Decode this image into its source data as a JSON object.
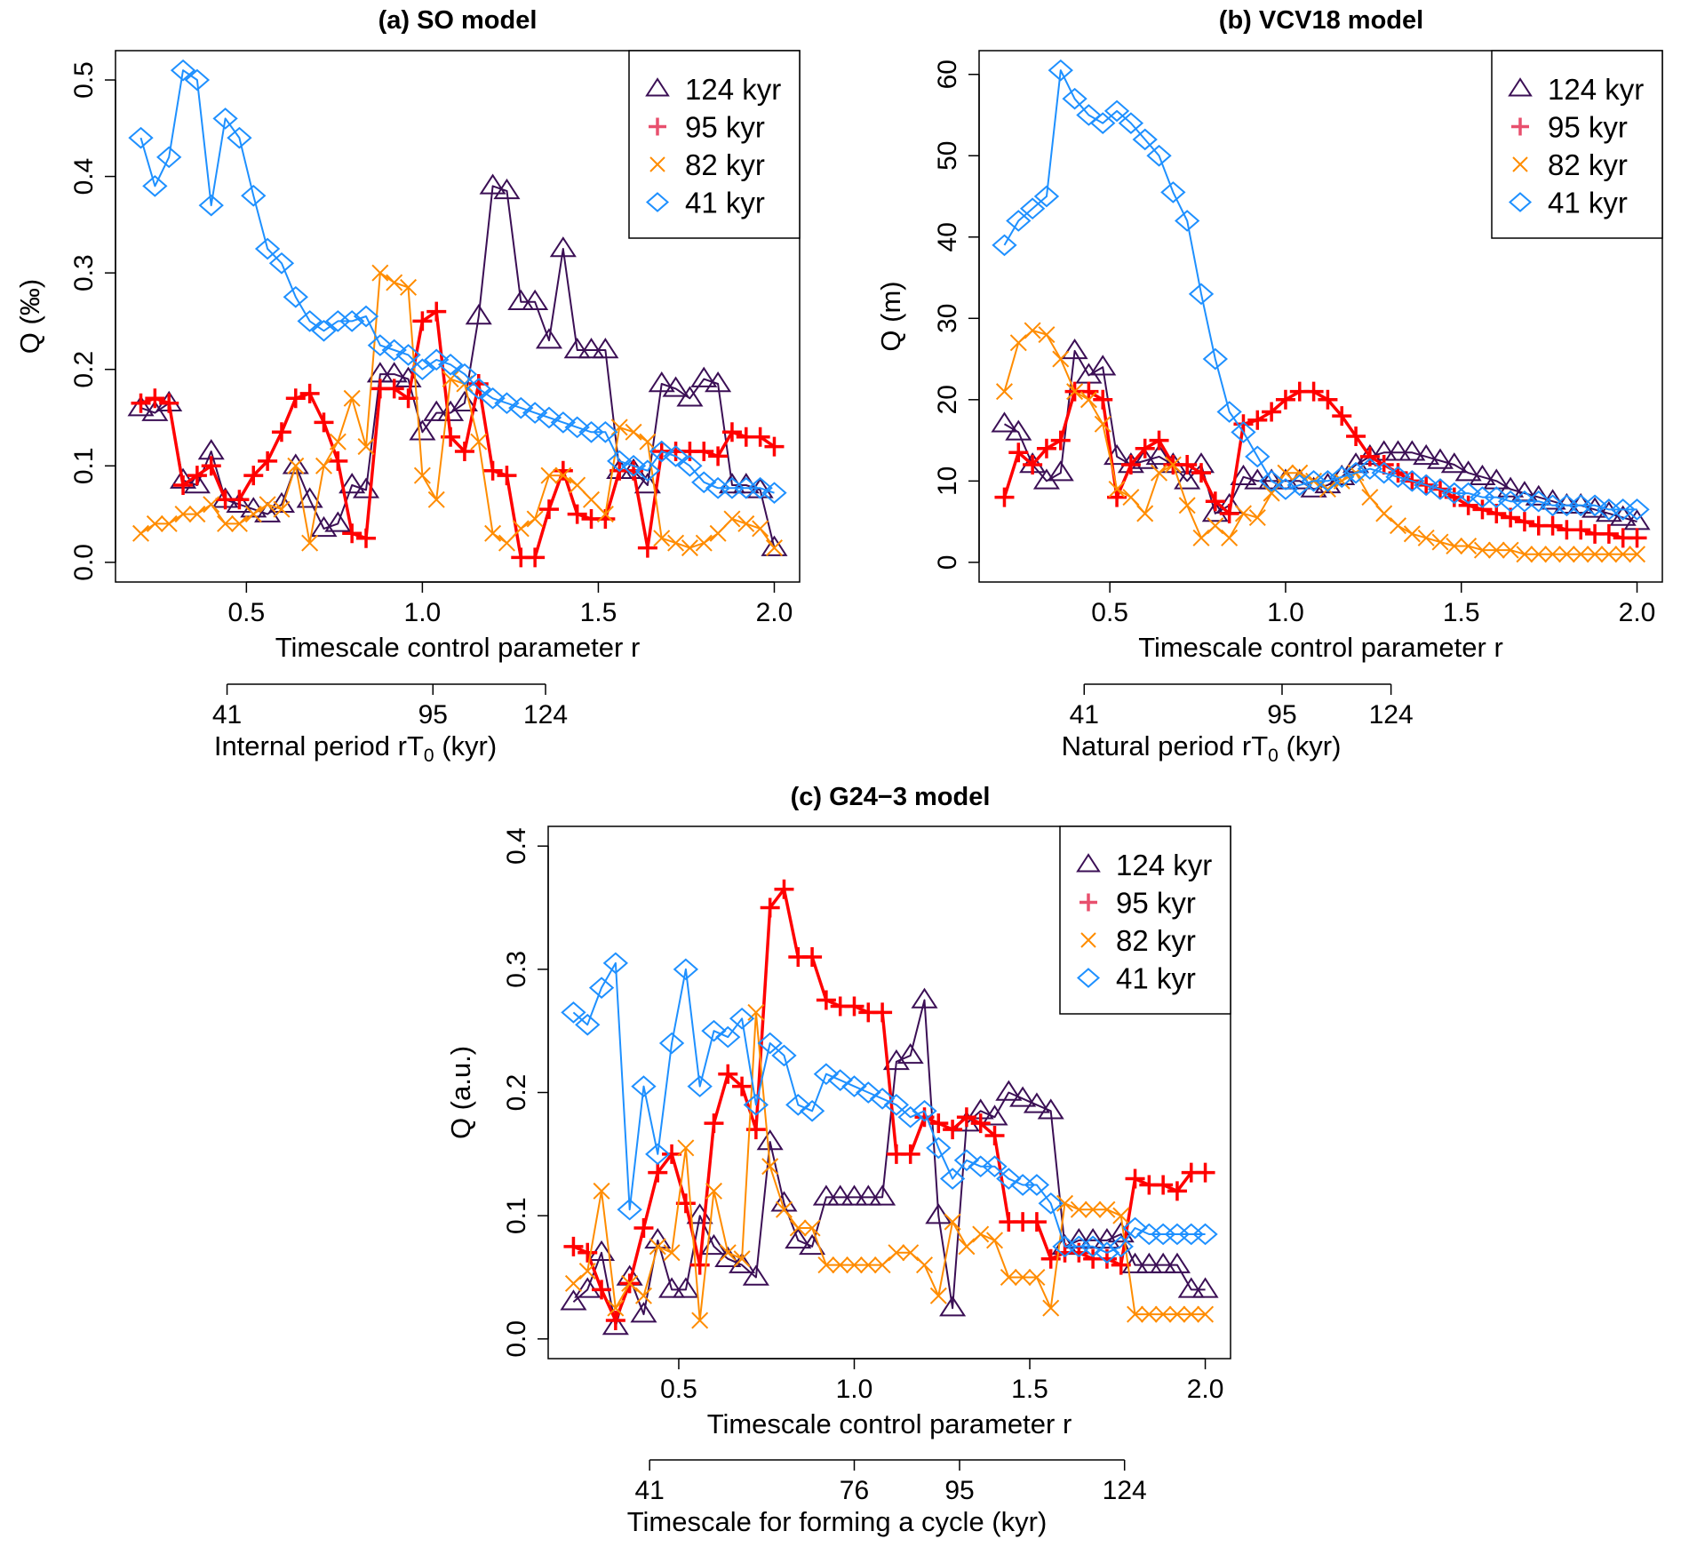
{
  "chart_data": [
    {
      "type": "line",
      "title": "(a) SO model",
      "xlabel": "Timescale control parameter r",
      "ylabel": "Q (‰)",
      "secondary_axis": {
        "label_main": "Internal period rT",
        "label_sub": "0",
        "label_tail": " (kyr)",
        "ticks": [
          "41",
          "95",
          "124"
        ]
      },
      "xlim": [
        0.2,
        2.0
      ],
      "ylim": [
        0,
        0.51
      ],
      "xticks": [
        "0.5",
        "1.0",
        "1.5",
        "2.0"
      ],
      "yticks": [
        "0.0",
        "0.1",
        "0.2",
        "0.3",
        "0.4",
        "0.5"
      ],
      "grid": false,
      "legend": "top-right",
      "x": {
        "start": 0.2,
        "step": 0.04,
        "count": 46
      },
      "series": [
        {
          "name": "124 kyr",
          "marker": "triangle",
          "color": "#3b0f55",
          "values": [
            0.16,
            0.155,
            0.165,
            0.085,
            0.08,
            0.115,
            0.065,
            0.06,
            0.055,
            0.05,
            0.06,
            0.1,
            0.065,
            0.035,
            0.04,
            0.08,
            0.075,
            0.195,
            0.195,
            0.19,
            0.135,
            0.155,
            0.155,
            0.165,
            0.255,
            0.39,
            0.385,
            0.27,
            0.27,
            0.23,
            0.325,
            0.22,
            0.22,
            0.22,
            0.095,
            0.095,
            0.08,
            0.185,
            0.18,
            0.17,
            0.19,
            0.185,
            0.08,
            0.08,
            0.075,
            0.015
          ]
        },
        {
          "name": "95 kyr",
          "marker": "plus",
          "color": "#ff0000",
          "values": [
            0.165,
            0.17,
            0.165,
            0.08,
            0.09,
            0.1,
            0.065,
            0.065,
            0.09,
            0.105,
            0.135,
            0.17,
            0.175,
            0.145,
            0.105,
            0.03,
            0.025,
            0.18,
            0.18,
            0.17,
            0.25,
            0.26,
            0.13,
            0.115,
            0.185,
            0.095,
            0.09,
            0.005,
            0.005,
            0.055,
            0.095,
            0.05,
            0.045,
            0.045,
            0.095,
            0.095,
            0.015,
            0.115,
            0.115,
            0.115,
            0.115,
            0.11,
            0.135,
            0.13,
            0.13,
            0.12
          ]
        },
        {
          "name": "82 kyr",
          "marker": "cross",
          "color": "#ff8c00",
          "values": [
            0.03,
            0.04,
            0.04,
            0.05,
            0.05,
            0.06,
            0.04,
            0.04,
            0.05,
            0.06,
            0.055,
            0.1,
            0.02,
            0.1,
            0.125,
            0.17,
            0.12,
            0.3,
            0.29,
            0.285,
            0.09,
            0.065,
            0.19,
            0.185,
            0.125,
            0.03,
            0.02,
            0.035,
            0.045,
            0.09,
            0.09,
            0.08,
            0.065,
            0.05,
            0.14,
            0.135,
            0.125,
            0.025,
            0.02,
            0.015,
            0.02,
            0.03,
            0.045,
            0.04,
            0.035,
            0.015
          ]
        },
        {
          "name": "41 kyr",
          "marker": "diamond",
          "color": "#1e90ff",
          "values": [
            0.44,
            0.39,
            0.42,
            0.51,
            0.5,
            0.37,
            0.46,
            0.44,
            0.38,
            0.325,
            0.31,
            0.275,
            0.25,
            0.24,
            0.25,
            0.25,
            0.255,
            0.225,
            0.22,
            0.215,
            0.2,
            0.21,
            0.205,
            0.195,
            0.18,
            0.17,
            0.165,
            0.16,
            0.155,
            0.15,
            0.145,
            0.14,
            0.135,
            0.135,
            0.105,
            0.1,
            0.095,
            0.115,
            0.11,
            0.1,
            0.083,
            0.077,
            0.077,
            0.077,
            0.077,
            0.072
          ]
        }
      ]
    },
    {
      "type": "line",
      "title": "(b) VCV18 model",
      "xlabel": "Timescale control parameter r",
      "ylabel": "Q (m)",
      "secondary_axis": {
        "label_main": "Natural period rT",
        "label_sub": "0",
        "label_tail": " (kyr)",
        "ticks": [
          "41",
          "95",
          "124"
        ]
      },
      "xlim": [
        0.2,
        2.0
      ],
      "ylim": [
        0,
        60.5
      ],
      "xticks": [
        "0.5",
        "1.0",
        "1.5",
        "2.0"
      ],
      "yticks": [
        "0",
        "10",
        "20",
        "30",
        "40",
        "50",
        "60"
      ],
      "grid": false,
      "legend": "top-right",
      "x": {
        "start": 0.2,
        "step": 0.04,
        "count": 46
      },
      "series": [
        {
          "name": "124 kyr",
          "marker": "triangle",
          "color": "#3b0f55",
          "values": [
            17,
            16,
            12,
            10,
            11,
            26,
            23,
            24,
            13,
            12,
            12.5,
            13,
            12,
            10,
            12,
            6,
            7,
            10.5,
            10,
            10,
            10,
            10,
            9,
            9.5,
            10.5,
            12,
            13,
            13.5,
            13.5,
            13.5,
            13,
            12.5,
            12,
            11,
            10.5,
            10,
            9,
            8.5,
            8,
            7.5,
            7,
            7,
            6.5,
            6,
            5.5,
            5
          ]
        },
        {
          "name": "95 kyr",
          "marker": "plus",
          "color": "#ff0000",
          "values": [
            8,
            13.5,
            12,
            14,
            15,
            21,
            21,
            20,
            8,
            12,
            14,
            15,
            12,
            12,
            11,
            7.5,
            6,
            17,
            17.5,
            18.5,
            20,
            21,
            21,
            20,
            18,
            15.5,
            13,
            12,
            11,
            10,
            9.5,
            9,
            8,
            7,
            6.5,
            6,
            5.5,
            5,
            4.5,
            4.5,
            4,
            4,
            3.5,
            3.5,
            3,
            3
          ]
        },
        {
          "name": "82 kyr",
          "marker": "cross",
          "color": "#ff8c00",
          "values": [
            21,
            27,
            28.5,
            28,
            25,
            21,
            20,
            17,
            9,
            8,
            6,
            11,
            12,
            7,
            3,
            4.5,
            3,
            6,
            5.5,
            8.5,
            11,
            11,
            10,
            9,
            10,
            11,
            8,
            6,
            4.5,
            3.5,
            3,
            2.5,
            2,
            2,
            1.5,
            1.5,
            1.5,
            1,
            1,
            1,
            1,
            1,
            1,
            1,
            1,
            1
          ]
        },
        {
          "name": "41 kyr",
          "marker": "diamond",
          "color": "#1e90ff",
          "values": [
            39,
            42,
            43.5,
            45,
            60.5,
            57,
            55,
            54,
            55.5,
            54,
            52,
            50,
            45.5,
            42,
            33,
            25,
            18.5,
            16,
            13,
            10,
            9,
            9.5,
            10,
            10,
            10.5,
            11,
            11.5,
            11,
            10.5,
            10,
            9.5,
            9,
            8.5,
            8.5,
            8,
            8,
            7.5,
            7.5,
            7.5,
            7,
            7,
            7,
            7,
            6.5,
            6.5,
            6.5
          ]
        }
      ]
    },
    {
      "type": "line",
      "title": "(c) G24−3 model",
      "xlabel": "Timescale control parameter r",
      "ylabel": "Q (a.u.)",
      "secondary_axis": {
        "label_main": "Timescale for forming a cycle (kyr)",
        "label_sub": "",
        "label_tail": "",
        "ticks": [
          "41",
          "76",
          "95",
          "124"
        ]
      },
      "xlim": [
        0.2,
        2.0
      ],
      "ylim": [
        0,
        0.4
      ],
      "xticks": [
        "0.5",
        "1.0",
        "1.5",
        "2.0"
      ],
      "yticks": [
        "0.0",
        "0.1",
        "0.2",
        "0.3",
        "0.4"
      ],
      "grid": false,
      "legend": "top-right",
      "x": {
        "start": 0.2,
        "step": 0.04,
        "count": 46
      },
      "series": [
        {
          "name": "124 kyr",
          "marker": "triangle",
          "color": "#3b0f55",
          "values": [
            0.03,
            0.04,
            0.07,
            0.01,
            0.05,
            0.02,
            0.08,
            0.04,
            0.04,
            0.1,
            0.075,
            0.065,
            0.06,
            0.05,
            0.16,
            0.11,
            0.08,
            0.075,
            0.115,
            0.115,
            0.115,
            0.115,
            0.115,
            0.225,
            0.23,
            0.275,
            0.1,
            0.025,
            0.175,
            0.185,
            0.18,
            0.2,
            0.195,
            0.19,
            0.185,
            0.075,
            0.08,
            0.08,
            0.08,
            0.085,
            0.06,
            0.06,
            0.06,
            0.06,
            0.04,
            0.04
          ]
        },
        {
          "name": "95 kyr",
          "marker": "plus",
          "color": "#ff0000",
          "values": [
            0.075,
            0.07,
            0.04,
            0.015,
            0.045,
            0.09,
            0.135,
            0.15,
            0.11,
            0.06,
            0.175,
            0.215,
            0.205,
            0.17,
            0.35,
            0.365,
            0.31,
            0.31,
            0.275,
            0.27,
            0.27,
            0.265,
            0.265,
            0.15,
            0.15,
            0.18,
            0.175,
            0.17,
            0.18,
            0.175,
            0.165,
            0.095,
            0.095,
            0.095,
            0.065,
            0.07,
            0.07,
            0.065,
            0.065,
            0.06,
            0.13,
            0.125,
            0.125,
            0.12,
            0.135,
            0.135
          ]
        },
        {
          "name": "82 kyr",
          "marker": "cross",
          "color": "#ff8c00",
          "values": [
            0.045,
            0.055,
            0.12,
            0.025,
            0.045,
            0.035,
            0.075,
            0.07,
            0.155,
            0.015,
            0.12,
            0.07,
            0.065,
            0.265,
            0.14,
            0.105,
            0.09,
            0.09,
            0.06,
            0.06,
            0.06,
            0.06,
            0.06,
            0.07,
            0.07,
            0.06,
            0.035,
            0.095,
            0.075,
            0.085,
            0.08,
            0.05,
            0.05,
            0.05,
            0.025,
            0.11,
            0.105,
            0.105,
            0.105,
            0.1,
            0.02,
            0.02,
            0.02,
            0.02,
            0.02,
            0.02
          ]
        },
        {
          "name": "41 kyr",
          "marker": "diamond",
          "color": "#1e90ff",
          "values": [
            0.265,
            0.255,
            0.285,
            0.305,
            0.105,
            0.205,
            0.15,
            0.24,
            0.3,
            0.205,
            0.25,
            0.245,
            0.26,
            0.19,
            0.24,
            0.23,
            0.19,
            0.185,
            0.215,
            0.21,
            0.205,
            0.2,
            0.195,
            0.19,
            0.18,
            0.185,
            0.155,
            0.13,
            0.145,
            0.14,
            0.14,
            0.13,
            0.125,
            0.125,
            0.11,
            0.075,
            0.075,
            0.075,
            0.07,
            0.075,
            0.09,
            0.085,
            0.085,
            0.085,
            0.085,
            0.085
          ]
        }
      ]
    }
  ]
}
